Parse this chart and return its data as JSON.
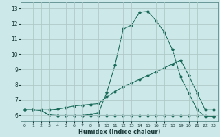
{
  "xlabel": "Humidex (Indice chaleur)",
  "bg_color": "#cce8e8",
  "grid_color": "#b0c8c8",
  "line_color": "#1a6b5a",
  "xlim": [
    -0.5,
    23.5
  ],
  "ylim": [
    5.6,
    13.4
  ],
  "xticks": [
    0,
    1,
    2,
    3,
    4,
    5,
    6,
    7,
    8,
    9,
    10,
    11,
    12,
    13,
    14,
    15,
    16,
    17,
    18,
    19,
    20,
    21,
    22,
    23
  ],
  "yticks": [
    6,
    7,
    8,
    9,
    10,
    11,
    12,
    13
  ],
  "line1_x": [
    0,
    1,
    2,
    3,
    4,
    5,
    6,
    7,
    8,
    9,
    10,
    11,
    12,
    13,
    14,
    15,
    16,
    17,
    18,
    19,
    20,
    21,
    22,
    23
  ],
  "line1_y": [
    6.35,
    6.35,
    6.3,
    6.0,
    5.98,
    5.98,
    5.98,
    5.98,
    5.98,
    5.98,
    5.98,
    5.98,
    5.98,
    5.98,
    5.98,
    5.98,
    5.98,
    5.98,
    5.98,
    5.98,
    5.98,
    5.98,
    5.98,
    5.9
  ],
  "line2_x": [
    0,
    1,
    2,
    3,
    4,
    5,
    6,
    7,
    8,
    9,
    10,
    11,
    12,
    13,
    14,
    15,
    16,
    17,
    18,
    19,
    20,
    21,
    22,
    23
  ],
  "line2_y": [
    6.35,
    6.35,
    6.35,
    6.35,
    6.4,
    6.5,
    6.6,
    6.65,
    6.7,
    6.75,
    7.2,
    7.55,
    7.85,
    8.1,
    8.35,
    8.6,
    8.85,
    9.1,
    9.35,
    9.6,
    8.6,
    7.45,
    6.35,
    6.35
  ],
  "line3_x": [
    0,
    1,
    2,
    3,
    4,
    5,
    6,
    7,
    8,
    9,
    10,
    11,
    12,
    13,
    14,
    15,
    16,
    17,
    18,
    19,
    20,
    21,
    22,
    23
  ],
  "line3_y": [
    6.35,
    6.35,
    6.3,
    6.0,
    5.98,
    5.98,
    5.98,
    5.98,
    6.05,
    6.15,
    7.5,
    9.3,
    11.65,
    11.9,
    12.75,
    12.8,
    12.2,
    11.45,
    10.3,
    8.5,
    7.45,
    6.35,
    5.9,
    5.9
  ]
}
